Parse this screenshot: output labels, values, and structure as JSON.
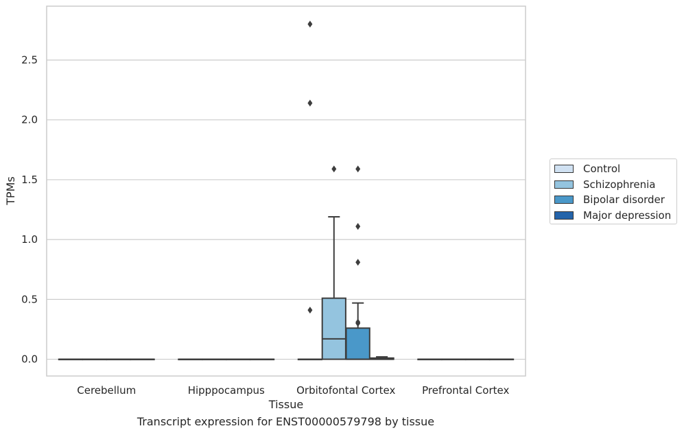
{
  "chart_data": {
    "type": "box",
    "title": "",
    "caption": "Transcript expression for ENST00000579798 by tissue",
    "xlabel": "Tissue",
    "ylabel": "TPMs",
    "ylim": [
      -0.14,
      2.95
    ],
    "yticks": [
      0.0,
      0.5,
      1.0,
      1.5,
      2.0,
      2.5
    ],
    "ytick_labels": [
      "0.0",
      "0.5",
      "1.0",
      "1.5",
      "2.0",
      "2.5"
    ],
    "categories": [
      "Cerebellum",
      "Hipppocampus",
      "Orbitofontal Cortex",
      "Prefrontal Cortex"
    ],
    "grid": "horizontal",
    "legend_position": "right",
    "series": [
      {
        "name": "Control",
        "color": "#d0e1f2",
        "boxes": [
          {
            "q1": 0,
            "median": 0,
            "q3": 0,
            "whisker_low": 0,
            "whisker_high": 0,
            "outliers": []
          },
          {
            "q1": 0,
            "median": 0,
            "q3": 0,
            "whisker_low": 0,
            "whisker_high": 0,
            "outliers": []
          },
          {
            "q1": 0,
            "median": 0,
            "q3": 0,
            "whisker_low": 0,
            "whisker_high": 0,
            "outliers": [
              0.41,
              2.14,
              2.8
            ]
          },
          {
            "q1": 0,
            "median": 0,
            "q3": 0,
            "whisker_low": 0,
            "whisker_high": 0,
            "outliers": []
          }
        ]
      },
      {
        "name": "Schizophrenia",
        "color": "#94c4df",
        "boxes": [
          {
            "q1": 0,
            "median": 0,
            "q3": 0,
            "whisker_low": 0,
            "whisker_high": 0,
            "outliers": []
          },
          {
            "q1": 0,
            "median": 0,
            "q3": 0,
            "whisker_low": 0,
            "whisker_high": 0,
            "outliers": []
          },
          {
            "q1": 0,
            "median": 0.17,
            "q3": 0.51,
            "whisker_low": 0,
            "whisker_high": 1.19,
            "outliers": [
              1.59
            ]
          },
          {
            "q1": 0,
            "median": 0,
            "q3": 0,
            "whisker_low": 0,
            "whisker_high": 0,
            "outliers": []
          }
        ]
      },
      {
        "name": "Bipolar disorder",
        "color": "#4a98c9",
        "boxes": [
          {
            "q1": 0,
            "median": 0,
            "q3": 0,
            "whisker_low": 0,
            "whisker_high": 0,
            "outliers": []
          },
          {
            "q1": 0,
            "median": 0,
            "q3": 0,
            "whisker_low": 0,
            "whisker_high": 0,
            "outliers": []
          },
          {
            "q1": 0,
            "median": 0,
            "q3": 0.26,
            "whisker_low": 0,
            "whisker_high": 0.47,
            "outliers": [
              0.3,
              0.31,
              0.81,
              1.11,
              1.59
            ]
          },
          {
            "q1": 0,
            "median": 0,
            "q3": 0,
            "whisker_low": 0,
            "whisker_high": 0,
            "outliers": []
          }
        ]
      },
      {
        "name": "Major depression",
        "color": "#2464aa",
        "boxes": [
          {
            "q1": 0,
            "median": 0,
            "q3": 0,
            "whisker_low": 0,
            "whisker_high": 0,
            "outliers": []
          },
          {
            "q1": 0,
            "median": 0,
            "q3": 0,
            "whisker_low": 0,
            "whisker_high": 0,
            "outliers": []
          },
          {
            "q1": 0,
            "median": 0,
            "q3": 0.01,
            "whisker_low": 0,
            "whisker_high": 0.02,
            "outliers": []
          },
          {
            "q1": 0,
            "median": 0,
            "q3": 0,
            "whisker_low": 0,
            "whisker_high": 0,
            "outliers": []
          }
        ]
      }
    ]
  }
}
